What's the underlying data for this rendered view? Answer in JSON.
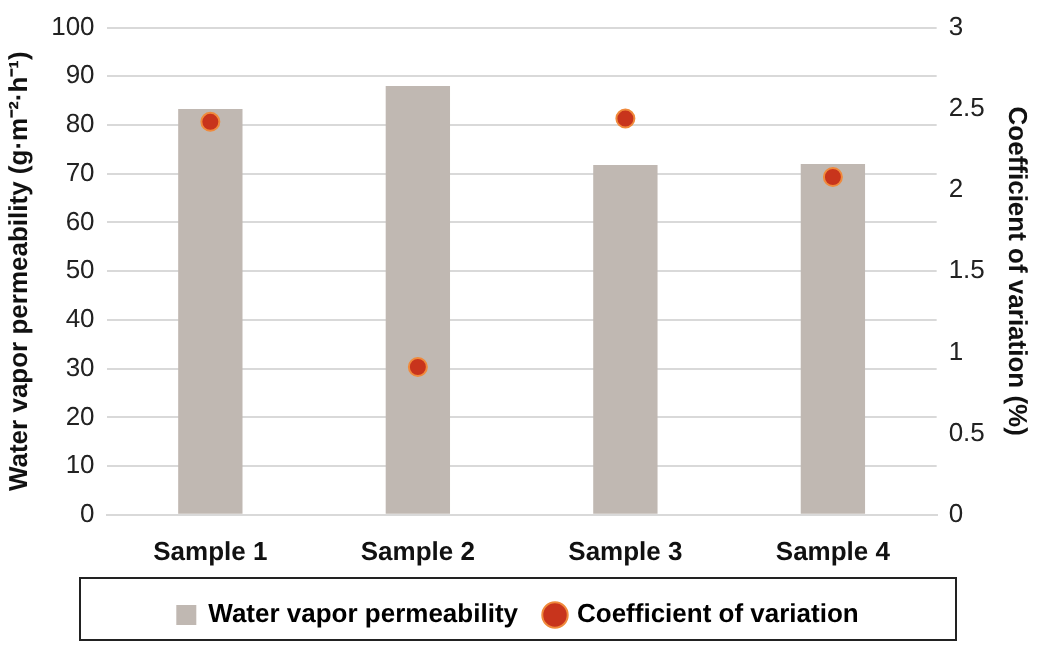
{
  "chart_data": {
    "type": "bar",
    "ylabel": "Water vapor permeability (g·m⁻²·h⁻¹)",
    "y2label": "Coefficient of variation (%)",
    "categories": [
      "Sample 1",
      "Sample 2",
      "Sample 3",
      "Sample 4"
    ],
    "series": [
      {
        "name": "Water vapor permeability",
        "color": "#c0b8b2",
        "values": [
          83.3,
          88.0,
          71.8,
          72.0
        ]
      },
      {
        "name": "Coefficient of variation",
        "type": "scatter",
        "axis": "y2",
        "color": "#c8341c",
        "values": [
          2.42,
          0.91,
          2.44,
          2.08
        ]
      }
    ],
    "ylim": [
      0,
      100
    ],
    "yticks": [
      0,
      10,
      20,
      30,
      40,
      50,
      60,
      70,
      80,
      90,
      100
    ],
    "y2lim": [
      0,
      3
    ],
    "y2ticks": [
      0,
      0.5,
      1,
      1.5,
      2,
      2.5,
      3
    ],
    "grid": "y",
    "legend": "bottom",
    "marker": "circle"
  }
}
